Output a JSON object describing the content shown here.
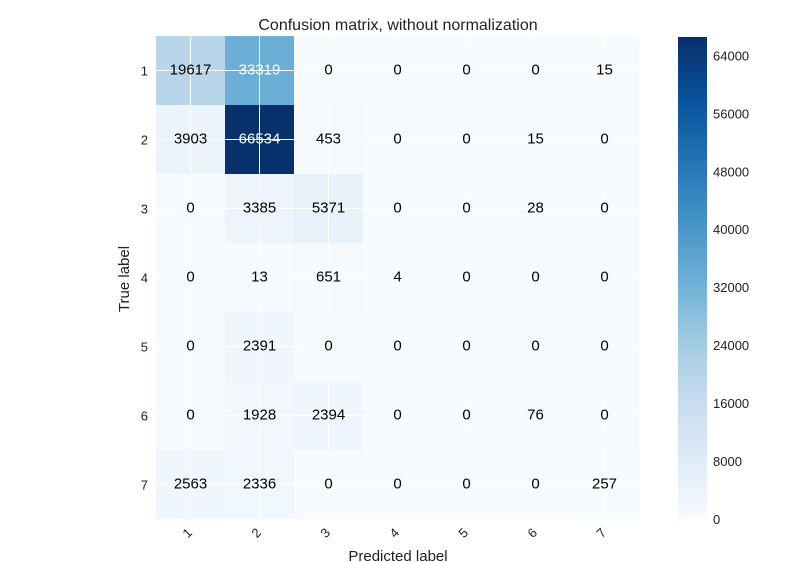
{
  "chart_data": {
    "type": "heatmap",
    "title": "Confusion matrix, without normalization",
    "xlabel": "Predicted label",
    "ylabel": "True label",
    "x_categories": [
      "1",
      "2",
      "3",
      "4",
      "5",
      "6",
      "7"
    ],
    "y_categories": [
      "1",
      "2",
      "3",
      "4",
      "5",
      "6",
      "7"
    ],
    "values": [
      [
        19617,
        33319,
        0,
        0,
        0,
        0,
        15
      ],
      [
        3903,
        66534,
        453,
        0,
        0,
        15,
        0
      ],
      [
        0,
        3385,
        5371,
        0,
        0,
        28,
        0
      ],
      [
        0,
        13,
        651,
        4,
        0,
        0,
        0
      ],
      [
        0,
        2391,
        0,
        0,
        0,
        0,
        0
      ],
      [
        0,
        1928,
        2394,
        0,
        0,
        76,
        0
      ],
      [
        2563,
        2336,
        0,
        0,
        0,
        0,
        257
      ]
    ],
    "colormap": "Blues",
    "colorbar": {
      "range": [
        0,
        66534
      ],
      "ticks": [
        0,
        8000,
        16000,
        24000,
        32000,
        40000,
        48000,
        56000,
        64000
      ]
    },
    "grid": true,
    "text_color_threshold": 33267
  }
}
